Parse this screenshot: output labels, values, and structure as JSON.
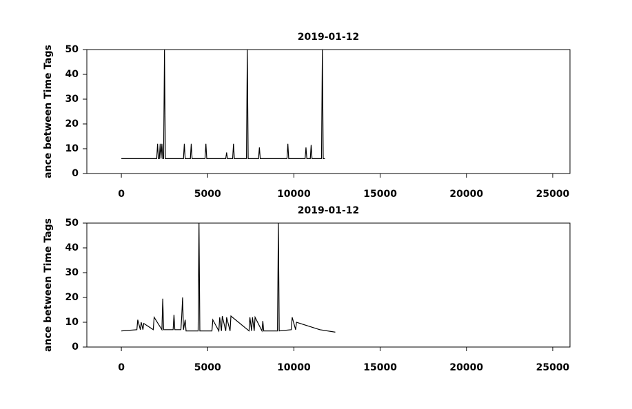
{
  "chart_data": [
    {
      "type": "line",
      "title": "2019-01-12",
      "y_label": "ance between Time Tags",
      "x": [
        0,
        2050,
        2100,
        2150,
        2200,
        2250,
        2300,
        2350,
        2400,
        2450,
        2500,
        2550,
        3600,
        3650,
        3700,
        4000,
        4050,
        4100,
        4850,
        4900,
        4950,
        6050,
        6100,
        6150,
        6450,
        6500,
        6550,
        7250,
        7300,
        7350,
        7950,
        8000,
        8050,
        9600,
        9650,
        9700,
        10650,
        10700,
        10750,
        10950,
        11000,
        11050,
        11600,
        11650,
        11700,
        11800
      ],
      "series": [
        {
          "color": "#000000",
          "values": [
            6,
            6,
            12,
            6,
            6,
            12,
            6,
            12,
            6,
            6,
            50,
            6,
            6,
            12,
            6,
            6,
            12,
            6,
            6,
            12,
            6,
            6,
            8.5,
            6,
            6,
            12,
            6,
            6,
            50,
            6,
            6,
            10.5,
            6,
            6,
            12,
            6,
            6,
            10.5,
            6,
            6,
            11.5,
            6,
            6,
            50,
            6,
            6
          ]
        }
      ],
      "xlim": [
        -2000,
        26000
      ],
      "xticks": [
        0,
        5000,
        10000,
        15000,
        20000,
        25000
      ],
      "ylim": [
        0,
        50
      ],
      "yticks": [
        0,
        10,
        20,
        30,
        40,
        50
      ]
    },
    {
      "type": "line",
      "title": "2019-01-12",
      "y_label": "ance between Time Tags",
      "x": [
        0,
        900,
        950,
        1100,
        1150,
        1250,
        1300,
        1850,
        1900,
        2350,
        2400,
        2450,
        3000,
        3050,
        3100,
        3450,
        3500,
        3550,
        3600,
        3700,
        3750,
        4450,
        4500,
        4550,
        5250,
        5300,
        5650,
        5700,
        5800,
        5850,
        6050,
        6100,
        6300,
        6350,
        7400,
        7450,
        7550,
        7600,
        7700,
        7750,
        8150,
        8200,
        8250,
        9050,
        9100,
        9150,
        9850,
        9900,
        10100,
        10150,
        11500,
        12400
      ],
      "series": [
        {
          "color": "#000000",
          "values": [
            6.5,
            7,
            11,
            7,
            10,
            7,
            9.5,
            7,
            12,
            7,
            19.5,
            7,
            7,
            13,
            7,
            7,
            12.5,
            20,
            7,
            11,
            6.5,
            6.5,
            50,
            6.5,
            6.5,
            11,
            6.5,
            12,
            6.5,
            12.5,
            6.5,
            12,
            6.5,
            12.5,
            6.5,
            12,
            6.5,
            12,
            6.5,
            12,
            6.5,
            10.5,
            6.5,
            6.5,
            50,
            6.5,
            7,
            12,
            7,
            10,
            7,
            6
          ]
        }
      ],
      "xlim": [
        -2000,
        26000
      ],
      "xticks": [
        0,
        5000,
        10000,
        15000,
        20000,
        25000
      ],
      "ylim": [
        0,
        50
      ],
      "yticks": [
        0,
        10,
        20,
        30,
        40,
        50
      ]
    }
  ]
}
